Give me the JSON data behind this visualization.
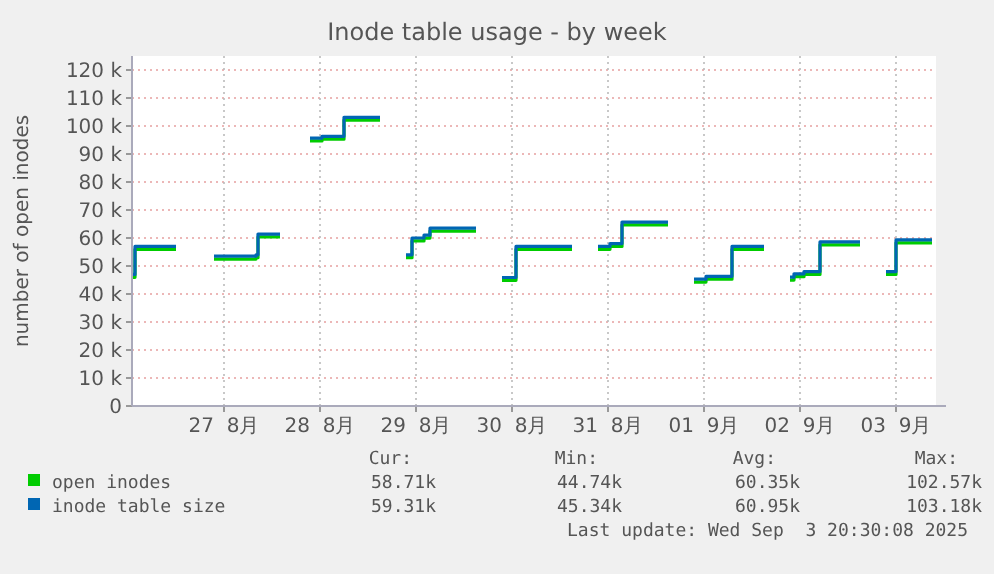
{
  "chart_data": {
    "type": "step",
    "title": "Inode table usage - by week",
    "ylabel": "number of open inodes",
    "x": [
      "2025-08-26T13:15",
      "2025-08-26T13:45",
      "2025-08-26T23:00",
      "2025-08-27T00:00",
      "2025-08-27T09:30",
      "2025-08-27T20:00",
      "2025-08-27T20:30",
      "2025-08-27T22:30",
      "2025-08-28T02:00",
      "2025-08-28T09:30",
      "2025-08-28T12:30",
      "2025-08-28T18:00",
      "2025-08-28T23:00",
      "2025-08-29T03:00",
      "2025-08-29T09:30",
      "2025-08-29T11:00",
      "2025-08-29T14:00",
      "2025-08-29T15:30",
      "2025-08-29T23:00",
      "2025-08-30T03:00",
      "2025-08-30T09:30",
      "2025-08-30T13:00",
      "2025-08-30T23:00",
      "2025-08-31T03:00",
      "2025-08-31T09:30",
      "2025-08-31T12:30",
      "2025-08-31T15:30",
      "2025-08-31T23:00",
      "2025-09-01T03:00",
      "2025-09-01T09:30",
      "2025-09-01T12:30",
      "2025-09-01T19:00",
      "2025-09-01T22:30",
      "2025-09-02T03:00",
      "2025-09-02T09:30",
      "2025-09-02T10:30",
      "2025-09-02T13:00",
      "2025-09-02T17:00",
      "2025-09-02T23:00",
      "2025-09-03T03:00",
      "2025-09-03T09:30",
      "2025-09-03T12:00",
      "2025-09-03T21:00"
    ],
    "series": [
      {
        "name": "open inodes",
        "color": "#00cc00",
        "values": [
          46.4,
          56.4,
          56.4,
          null,
          52.9,
          53.4,
          60.8,
          60.8,
          null,
          95.1,
          95.7,
          102.5,
          102.5,
          null,
          53.4,
          59.4,
          60.4,
          62.9,
          62.9,
          null,
          45.3,
          56.4,
          56.4,
          null,
          56.4,
          57.4,
          65.1,
          65.1,
          null,
          44.7,
          45.7,
          56.4,
          56.4,
          null,
          45.4,
          46.6,
          47.4,
          58,
          58,
          null,
          47.4,
          58.7,
          58.7
        ]
      },
      {
        "name": "inode table size",
        "color": "#0066b3",
        "values": [
          47,
          57,
          57,
          null,
          53.5,
          54,
          61.4,
          61.4,
          null,
          95.7,
          96.3,
          103.1,
          103.1,
          null,
          54,
          60,
          61,
          63.5,
          63.5,
          null,
          45.9,
          57,
          57,
          null,
          57,
          58,
          65.7,
          65.7,
          null,
          45.3,
          46.3,
          57,
          57,
          null,
          46,
          47.2,
          48,
          58.6,
          58.6,
          null,
          48,
          59.3,
          59.3
        ]
      }
    ],
    "xlim": [
      "2025-08-26T13:00",
      "2025-09-03T22:00"
    ],
    "xticks": [
      {
        "value": "2025-08-27T12:00",
        "label": "27  8月"
      },
      {
        "value": "2025-08-28T12:00",
        "label": "28  8月"
      },
      {
        "value": "2025-08-29T12:00",
        "label": "29  8月"
      },
      {
        "value": "2025-08-30T12:00",
        "label": "30  8月"
      },
      {
        "value": "2025-08-31T12:00",
        "label": "31  8月"
      },
      {
        "value": "2025-09-01T12:00",
        "label": "01  9月"
      },
      {
        "value": "2025-09-02T12:00",
        "label": "02  9月"
      },
      {
        "value": "2025-09-03T12:00",
        "label": "03  9月"
      }
    ],
    "ylim": [
      0,
      125
    ],
    "yticks": [
      0,
      {
        "value": 10,
        "label": "10 k"
      },
      {
        "value": 20,
        "label": "20 k"
      },
      {
        "value": 30,
        "label": "30 k"
      },
      {
        "value": 40,
        "label": "40 k"
      },
      {
        "value": 50,
        "label": "50 k"
      },
      {
        "value": 60,
        "label": "60 k"
      },
      {
        "value": 70,
        "label": "70 k"
      },
      {
        "value": 80,
        "label": "80 k"
      },
      {
        "value": 90,
        "label": "90 k"
      },
      {
        "value": 100,
        "label": "100 k"
      },
      {
        "value": 110,
        "label": "110 k"
      },
      {
        "value": 120,
        "label": "120 k"
      }
    ],
    "grid": true,
    "legend": "bottom",
    "annotations": [
      "Cur:",
      "Min:",
      "Avg:",
      "Max:",
      "58.71k",
      "44.74k",
      "60.35k",
      "102.57k",
      "59.31k",
      "45.34k",
      "60.95k",
      "103.18k",
      "Last update: Wed Sep  3 20:30:08 2025"
    ]
  }
}
